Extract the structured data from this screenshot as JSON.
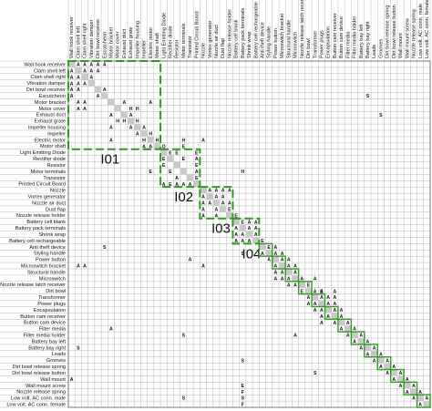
{
  "components": [
    "Wall hook receiver",
    "Clam shell left",
    "Clam shell right",
    "Vibration damper",
    "Dirt bowl receiver",
    "Escutcheon",
    "Motor bracket",
    "Motor cover",
    "Exhaust duct",
    "Exhaust grate",
    "Impeller housing",
    "Impeller",
    "Electric motor",
    "Motor shaft",
    "Light Emitting Diode",
    "Rectifier diode",
    "Resistor",
    "Motor terminals",
    "Transistor",
    "Printed Circuit Board",
    "Nozzle",
    "Vortex generator",
    "Nozzle air duct",
    "Dust flap",
    "Nozzle release holder",
    "Battery cell blank",
    "Battery pack terminals",
    "Shrink wrap",
    "Battery cell rechargeable",
    "Anti theft device",
    "Styling handle",
    "Power button",
    "Microswitch bracket",
    "Structural handle",
    "Microswitch",
    "Nozzle release latch receiver",
    "Dirt bowl",
    "Transformer",
    "Power plugs",
    "Encapsulation",
    "Button cam receiver",
    "Button cam device",
    "Filter media",
    "Filter media holder",
    "Battery bay left",
    "Battery bay right",
    "Leads",
    "Grooves",
    "Dirt bowl release spring",
    "Dirt bowl release button",
    "Wall mount",
    "Wall mount screw",
    "Nozzle release spring",
    "Low volt. AC conn. male",
    "Low volt. AC conn. female"
  ],
  "modules": [
    {
      "name": "I01",
      "start": 0,
      "end": 13
    },
    {
      "name": "I02",
      "start": 14,
      "end": 19
    },
    {
      "name": "I03",
      "start": 20,
      "end": 24
    },
    {
      "name": "I04",
      "start": 25,
      "end": 28
    }
  ],
  "links": [
    [
      "A",
      0,
      1
    ],
    [
      "A",
      0,
      2
    ],
    [
      "A",
      0,
      3
    ],
    [
      "A",
      0,
      4
    ],
    [
      "A",
      0,
      5
    ],
    [
      "A",
      1,
      0
    ],
    [
      "A",
      1,
      2
    ],
    [
      "A",
      1,
      3
    ],
    [
      "A",
      1,
      4
    ],
    [
      "A",
      2,
      0
    ],
    [
      "A",
      2,
      1
    ],
    [
      "A",
      2,
      3
    ],
    [
      "A",
      3,
      0
    ],
    [
      "A",
      3,
      1
    ],
    [
      "A",
      3,
      2
    ],
    [
      "A",
      4,
      0
    ],
    [
      "A",
      4,
      1
    ],
    [
      "A",
      4,
      5
    ],
    [
      "A",
      5,
      0
    ],
    [
      "A",
      5,
      4
    ],
    [
      "S",
      5,
      45
    ],
    [
      "A",
      6,
      1
    ],
    [
      "A",
      6,
      2
    ],
    [
      "A",
      6,
      8
    ],
    [
      "A",
      6,
      12
    ],
    [
      "A",
      7,
      1
    ],
    [
      "A",
      7,
      2
    ],
    [
      "H",
      7,
      9
    ],
    [
      "H",
      7,
      10
    ],
    [
      "A",
      8,
      6
    ],
    [
      "A",
      8,
      9
    ],
    [
      "S",
      8,
      47
    ],
    [
      "H",
      9,
      7
    ],
    [
      "H",
      9,
      8
    ],
    [
      "H",
      9,
      10
    ],
    [
      "A",
      10,
      6
    ],
    [
      "A",
      10,
      9
    ],
    [
      "A",
      10,
      11
    ],
    [
      "A",
      11,
      10
    ],
    [
      "H",
      11,
      12
    ],
    [
      "A",
      12,
      6
    ],
    [
      "H",
      12,
      11
    ],
    [
      "H",
      12,
      13
    ],
    [
      "H",
      12,
      17
    ],
    [
      "A",
      12,
      20
    ],
    [
      "A",
      13,
      11
    ],
    [
      "A",
      13,
      12
    ],
    [
      "Q",
      13,
      14
    ],
    [
      "E",
      13,
      17
    ],
    [
      "E",
      14,
      15
    ],
    [
      "E",
      14,
      16
    ],
    [
      "E",
      14,
      19
    ],
    [
      "E",
      15,
      14
    ],
    [
      "E",
      15,
      17
    ],
    [
      "A",
      15,
      19
    ],
    [
      "E",
      16,
      14
    ],
    [
      "E",
      16,
      19
    ],
    [
      "E",
      17,
      12
    ],
    [
      "E",
      17,
      15
    ],
    [
      "A",
      17,
      19
    ],
    [
      "H",
      17,
      26
    ],
    [
      "E",
      18,
      19
    ],
    [
      "A",
      18,
      16
    ],
    [
      "A",
      19,
      14
    ],
    [
      "E",
      19,
      15
    ],
    [
      "A",
      19,
      16
    ],
    [
      "A",
      19,
      17
    ],
    [
      "A",
      19,
      18
    ],
    [
      "A",
      20,
      21
    ],
    [
      "A",
      20,
      22
    ],
    [
      "A",
      20,
      23
    ],
    [
      "A",
      20,
      24
    ],
    [
      "A",
      21,
      20
    ],
    [
      "A",
      21,
      22
    ],
    [
      "A",
      21,
      23
    ],
    [
      "A",
      22,
      20
    ],
    [
      "A",
      22,
      21
    ],
    [
      "A",
      22,
      23
    ],
    [
      "A",
      22,
      24
    ],
    [
      "A",
      23,
      20
    ],
    [
      "A",
      23,
      22
    ],
    [
      "E",
      23,
      24
    ],
    [
      "A",
      24,
      20
    ],
    [
      "A",
      24,
      22
    ],
    [
      "E",
      24,
      25
    ],
    [
      "E",
      25,
      26
    ],
    [
      "A",
      25,
      27
    ],
    [
      "A",
      25,
      28
    ],
    [
      "A",
      26,
      25
    ],
    [
      "A",
      26,
      27
    ],
    [
      "A",
      26,
      28
    ],
    [
      "A",
      27,
      25
    ],
    [
      "A",
      27,
      26
    ],
    [
      "A",
      27,
      28
    ],
    [
      "A",
      28,
      25
    ],
    [
      "A",
      28,
      26
    ],
    [
      "A",
      28,
      27
    ],
    [
      "E",
      28,
      29
    ],
    [
      "E",
      29,
      30
    ],
    [
      "S",
      29,
      5
    ],
    [
      "A",
      29,
      31
    ],
    [
      "A",
      30,
      29
    ],
    [
      "A",
      30,
      31
    ],
    [
      "A",
      30,
      32
    ],
    [
      "S",
      30,
      26
    ],
    [
      "A",
      31,
      30
    ],
    [
      "A",
      31,
      32
    ],
    [
      "A",
      31,
      33
    ],
    [
      "A",
      31,
      18
    ],
    [
      "A",
      32,
      1
    ],
    [
      "A",
      32,
      2
    ],
    [
      "A",
      32,
      31
    ],
    [
      "A",
      32,
      33
    ],
    [
      "A",
      32,
      34
    ],
    [
      "A",
      32,
      20
    ],
    [
      "A",
      33,
      31
    ],
    [
      "A",
      33,
      32
    ],
    [
      "A",
      33,
      34
    ],
    [
      "A",
      34,
      31
    ],
    [
      "A",
      34,
      32
    ],
    [
      "A",
      34,
      33
    ],
    [
      "A",
      34,
      35
    ],
    [
      "A",
      34,
      37
    ],
    [
      "A",
      35,
      33
    ],
    [
      "A",
      35,
      34
    ],
    [
      "E",
      35,
      36
    ],
    [
      "E",
      36,
      35
    ],
    [
      "A",
      36,
      37
    ],
    [
      "E",
      36,
      38
    ],
    [
      "A",
      36,
      40
    ],
    [
      "A",
      36,
      38
    ],
    [
      "A",
      37,
      36
    ],
    [
      "A",
      37,
      38
    ],
    [
      "A",
      37,
      39
    ],
    [
      "A",
      37,
      40
    ],
    [
      "A",
      38,
      36
    ],
    [
      "A",
      38,
      37
    ],
    [
      "A",
      38,
      39
    ],
    [
      "A",
      38,
      40
    ],
    [
      "A",
      39,
      37
    ],
    [
      "A",
      39,
      38
    ],
    [
      "A",
      39,
      40
    ],
    [
      "A",
      39,
      41
    ],
    [
      "A",
      40,
      38
    ],
    [
      "A",
      40,
      39
    ],
    [
      "A",
      40,
      41
    ],
    [
      "A",
      41,
      38
    ],
    [
      "A",
      41,
      40
    ],
    [
      "A",
      41,
      42
    ],
    [
      "A",
      42,
      41
    ],
    [
      "A",
      42,
      43
    ],
    [
      "A",
      42,
      6
    ],
    [
      "A",
      43,
      42
    ],
    [
      "A",
      43,
      44
    ],
    [
      "S",
      43,
      17
    ],
    [
      "A",
      43,
      34
    ],
    [
      "A",
      44,
      43
    ],
    [
      "A",
      44,
      45
    ],
    [
      "A",
      45,
      44
    ],
    [
      "A",
      45,
      46
    ],
    [
      "S",
      45,
      1
    ],
    [
      "A",
      46,
      45
    ],
    [
      "A",
      46,
      47
    ],
    [
      "A",
      47,
      46
    ],
    [
      "A",
      47,
      48
    ],
    [
      "S",
      47,
      26
    ],
    [
      "A",
      48,
      47
    ],
    [
      "A",
      48,
      49
    ],
    [
      "A",
      49,
      48
    ],
    [
      "A",
      49,
      50
    ],
    [
      "S",
      49,
      37
    ],
    [
      "A",
      50,
      0
    ],
    [
      "A",
      50,
      49
    ],
    [
      "A",
      50,
      51
    ],
    [
      "A",
      51,
      50
    ],
    [
      "A",
      51,
      52
    ],
    [
      "E",
      51,
      26
    ],
    [
      "A",
      52,
      51
    ],
    [
      "A",
      52,
      53
    ],
    [
      "F",
      52,
      26
    ],
    [
      "A",
      53,
      52
    ],
    [
      "A",
      53,
      54
    ],
    [
      "S",
      53,
      26
    ],
    [
      "S",
      53,
      17
    ],
    [
      "A",
      54,
      53
    ],
    [
      "F",
      54,
      26
    ]
  ]
}
